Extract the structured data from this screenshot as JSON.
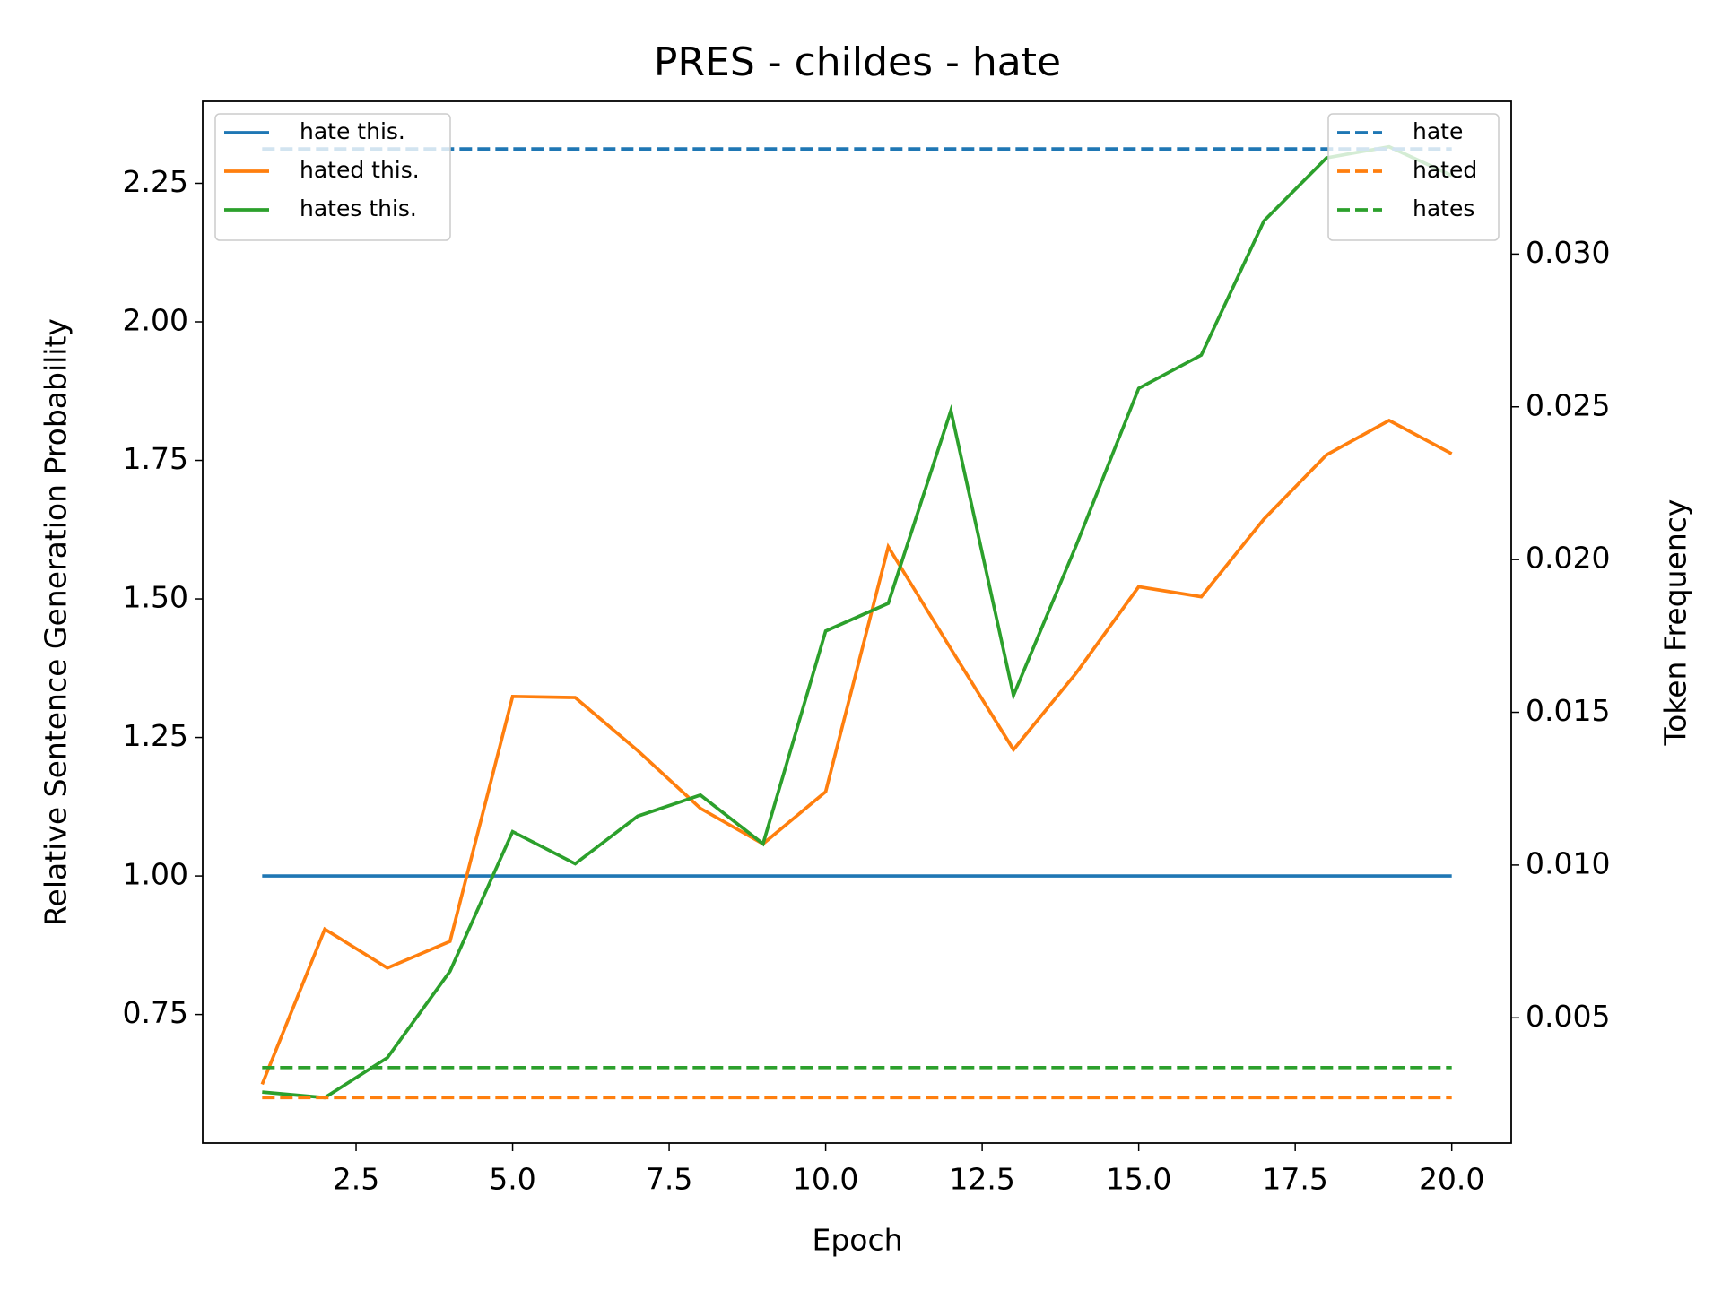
{
  "chart_data": {
    "type": "line",
    "title": "PRES - childes - hate",
    "xlabel": "Epoch",
    "ylabel": "Relative Sentence Generation Probability",
    "y2label": "Token Frequency",
    "x": [
      1,
      2,
      3,
      4,
      5,
      6,
      7,
      8,
      9,
      10,
      11,
      12,
      13,
      14,
      15,
      16,
      17,
      18,
      19,
      20
    ],
    "xlim": [
      0.05,
      20.95
    ],
    "xticks": [
      2.5,
      {
        "value": 5,
        "label": "5.0"
      },
      7.5,
      {
        "value": 10,
        "label": "10.0"
      },
      12.5,
      {
        "value": 15,
        "label": "15.0"
      },
      17.5,
      {
        "value": 20,
        "label": "20.0"
      }
    ],
    "ylim": [
      0.518,
      2.398
    ],
    "yticks": [
      0.75,
      {
        "value": 1,
        "label": "1.00"
      },
      1.25,
      {
        "value": 1.5,
        "label": "1.50"
      },
      1.75,
      {
        "value": 2,
        "label": "2.00"
      },
      2.25
    ],
    "y2lim": [
      0.0009,
      0.035
    ],
    "y2ticks": [
      0.005,
      {
        "value": 0.01,
        "label": "0.010"
      },
      0.015,
      {
        "value": 0.02,
        "label": "0.020"
      },
      0.025,
      {
        "value": 0.03,
        "label": "0.030"
      }
    ],
    "legend": "upper left",
    "legend2": "upper right",
    "series": [
      {
        "name": "hate this.",
        "color": "#1f77b4",
        "linestyle": "solid",
        "values": [
          1,
          1,
          1,
          1,
          1,
          1,
          1,
          1,
          1,
          1,
          1,
          1,
          1,
          1,
          1,
          1,
          1,
          1,
          1,
          1
        ]
      },
      {
        "name": "hated this.",
        "color": "#ff7f0e",
        "linestyle": "solid",
        "values": [
          0.624,
          0.904,
          0.834,
          0.882,
          1.324,
          1.322,
          1.226,
          1.122,
          1.058,
          1.152,
          1.594,
          1.41,
          1.228,
          1.366,
          1.522,
          1.504,
          1.644,
          1.76,
          1.822,
          1.762
        ]
      },
      {
        "name": "hates this.",
        "color": "#2ca02c",
        "linestyle": "solid",
        "values": [
          0.61,
          0.6,
          0.672,
          0.828,
          1.08,
          1.022,
          1.108,
          1.146,
          1.058,
          1.442,
          1.492,
          1.84,
          1.326,
          1.596,
          1.88,
          1.94,
          2.182,
          2.296,
          2.316,
          2.264
        ]
      },
      {
        "name": "hate",
        "color": "#1f77b4",
        "linestyle": "dashed",
        "axis": "y2",
        "values": [
          0.03344,
          0.03344,
          0.03344,
          0.03344,
          0.03344,
          0.03344,
          0.03344,
          0.03344,
          0.03344,
          0.03344,
          0.03344,
          0.03344,
          0.03344,
          0.03344,
          0.03344,
          0.03344,
          0.03344,
          0.03344,
          0.03344,
          0.03344
        ]
      },
      {
        "name": "hated",
        "color": "#ff7f0e",
        "linestyle": "dashed",
        "axis": "y2",
        "values": [
          0.00239,
          0.00239,
          0.00239,
          0.00239,
          0.00239,
          0.00239,
          0.00239,
          0.00239,
          0.00239,
          0.00239,
          0.00239,
          0.00239,
          0.00239,
          0.00239,
          0.00239,
          0.00239,
          0.00239,
          0.00239,
          0.00239,
          0.00239
        ]
      },
      {
        "name": "hates",
        "color": "#2ca02c",
        "linestyle": "dashed",
        "axis": "y2",
        "values": [
          0.00337,
          0.00337,
          0.00337,
          0.00337,
          0.00337,
          0.00337,
          0.00337,
          0.00337,
          0.00337,
          0.00337,
          0.00337,
          0.00337,
          0.00337,
          0.00337,
          0.00337,
          0.00337,
          0.00337,
          0.00337,
          0.00337,
          0.00337
        ]
      }
    ]
  }
}
